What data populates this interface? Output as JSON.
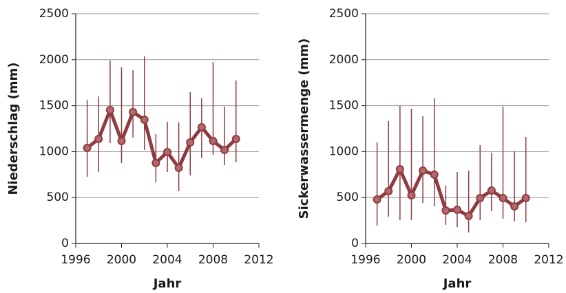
{
  "chart_data": [
    {
      "type": "line",
      "ylabel": "Niederschlag (mm)",
      "xlabel": "Jahr",
      "xlim": [
        1996,
        2012
      ],
      "xticks": [
        1996,
        2000,
        2004,
        2008,
        2012
      ],
      "ylim": [
        0,
        2500
      ],
      "yticks": [
        0,
        500,
        1000,
        1500,
        2000,
        2500
      ],
      "grid": true,
      "x": [
        1997,
        1998,
        1999,
        2000,
        2001,
        2002,
        2003,
        2004,
        2005,
        2006,
        2007,
        2008,
        2009,
        2010
      ],
      "series": [
        {
          "color": "#8e3b40",
          "values": [
            1040,
            1138,
            1452,
            1115,
            1430,
            1347,
            876,
            995,
            823,
            1100,
            1265,
            1115,
            1018,
            1138
          ],
          "lower": [
            726,
            778,
            1093,
            876,
            1153,
            1018,
            666,
            778,
            569,
            741,
            928,
            966,
            853,
            883
          ],
          "upper": [
            1565,
            1600,
            1990,
            1916,
            1886,
            2036,
            1190,
            1325,
            1317,
            1647,
            1580,
            1976,
            1490,
            1774
          ]
        }
      ]
    },
    {
      "type": "line",
      "ylabel": "Sickerwassermenge (mm)",
      "xlabel": "Jahr",
      "xlim": [
        1996,
        2012
      ],
      "xticks": [
        1996,
        2000,
        2004,
        2008,
        2012
      ],
      "ylim": [
        0,
        2500
      ],
      "yticks": [
        0,
        500,
        1000,
        1500,
        2000,
        2500
      ],
      "grid": true,
      "x": [
        1997,
        1998,
        1999,
        2000,
        2001,
        2002,
        2003,
        2004,
        2005,
        2006,
        2007,
        2008,
        2009,
        2010
      ],
      "series": [
        {
          "color": "#8e3b40",
          "values": [
            479,
            569,
            808,
            524,
            793,
            749,
            359,
            367,
            299,
            494,
            576,
            494,
            404,
            494
          ],
          "lower": [
            195,
            292,
            254,
            254,
            442,
            404,
            202,
            180,
            120,
            254,
            352,
            269,
            240,
            232
          ],
          "upper": [
            1100,
            1332,
            1497,
            1467,
            1385,
            1579,
            629,
            778,
            793,
            1070,
            988,
            1490,
            1003,
            1160
          ]
        }
      ]
    }
  ]
}
